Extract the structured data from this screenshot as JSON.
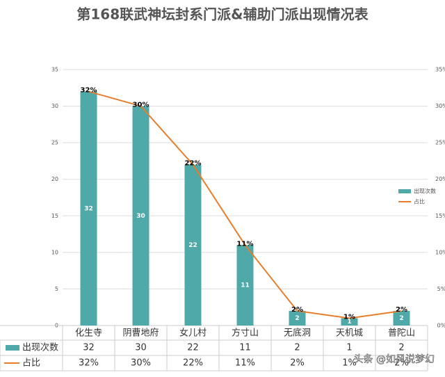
{
  "chart_data": {
    "type": "bar-line",
    "title": "第168联武神坛封系门派&辅助门派出现情况表",
    "categories": [
      "化生寺",
      "阴曹地府",
      "女儿村",
      "方寸山",
      "无底洞",
      "天机城",
      "普陀山"
    ],
    "series": [
      {
        "name": "出现次数",
        "type": "bar",
        "color": "#4fa9a8",
        "values": [
          32,
          30,
          22,
          11,
          2,
          1,
          2
        ]
      },
      {
        "name": "占比",
        "type": "line",
        "axis": "y2",
        "color": "#e87d2a",
        "values": [
          32,
          30,
          22,
          11,
          2,
          1,
          2
        ],
        "value_labels": [
          "32%",
          "30%",
          "22%",
          "11%",
          "2%",
          "1%",
          "2%"
        ]
      }
    ],
    "ylim": [
      0,
      35
    ],
    "yticks": [
      0,
      5,
      10,
      15,
      20,
      25,
      30,
      35
    ],
    "y2lim": [
      0,
      35
    ],
    "y2ticks": [
      {
        "value": 0,
        "label": "0%"
      },
      {
        "value": 5,
        "label": "5%"
      },
      {
        "value": 10,
        "label": "10%"
      },
      {
        "value": 15,
        "label": "15%"
      },
      {
        "value": 20,
        "label": "20%"
      },
      {
        "value": 25,
        "label": "25%"
      },
      {
        "value": 30,
        "label": "30%"
      },
      {
        "value": 35,
        "label": "35%"
      }
    ],
    "grid": true,
    "legend": "right",
    "watermark": "头条 @如风说梦幻"
  }
}
